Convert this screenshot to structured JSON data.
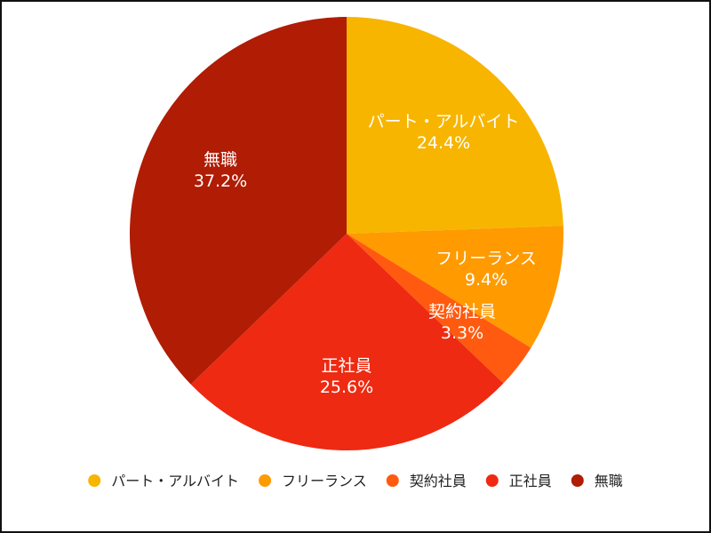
{
  "chart_data": {
    "type": "pie",
    "title": "",
    "categories": [
      "パート・アルバイト",
      "フリーランス",
      "契約社員",
      "正社員",
      "無職"
    ],
    "values": [
      24.4,
      9.4,
      3.3,
      25.6,
      37.2
    ],
    "value_labels": [
      "24.4%",
      "9.4%",
      "3.3%",
      "25.6%",
      "37.2%"
    ],
    "colors": [
      "#F7B500",
      "#FF9A00",
      "#FF5A10",
      "#EE2A12",
      "#B01C04"
    ],
    "start_angle": "top (12 o'clock)",
    "direction": "clockwise",
    "legend_position": "bottom"
  }
}
